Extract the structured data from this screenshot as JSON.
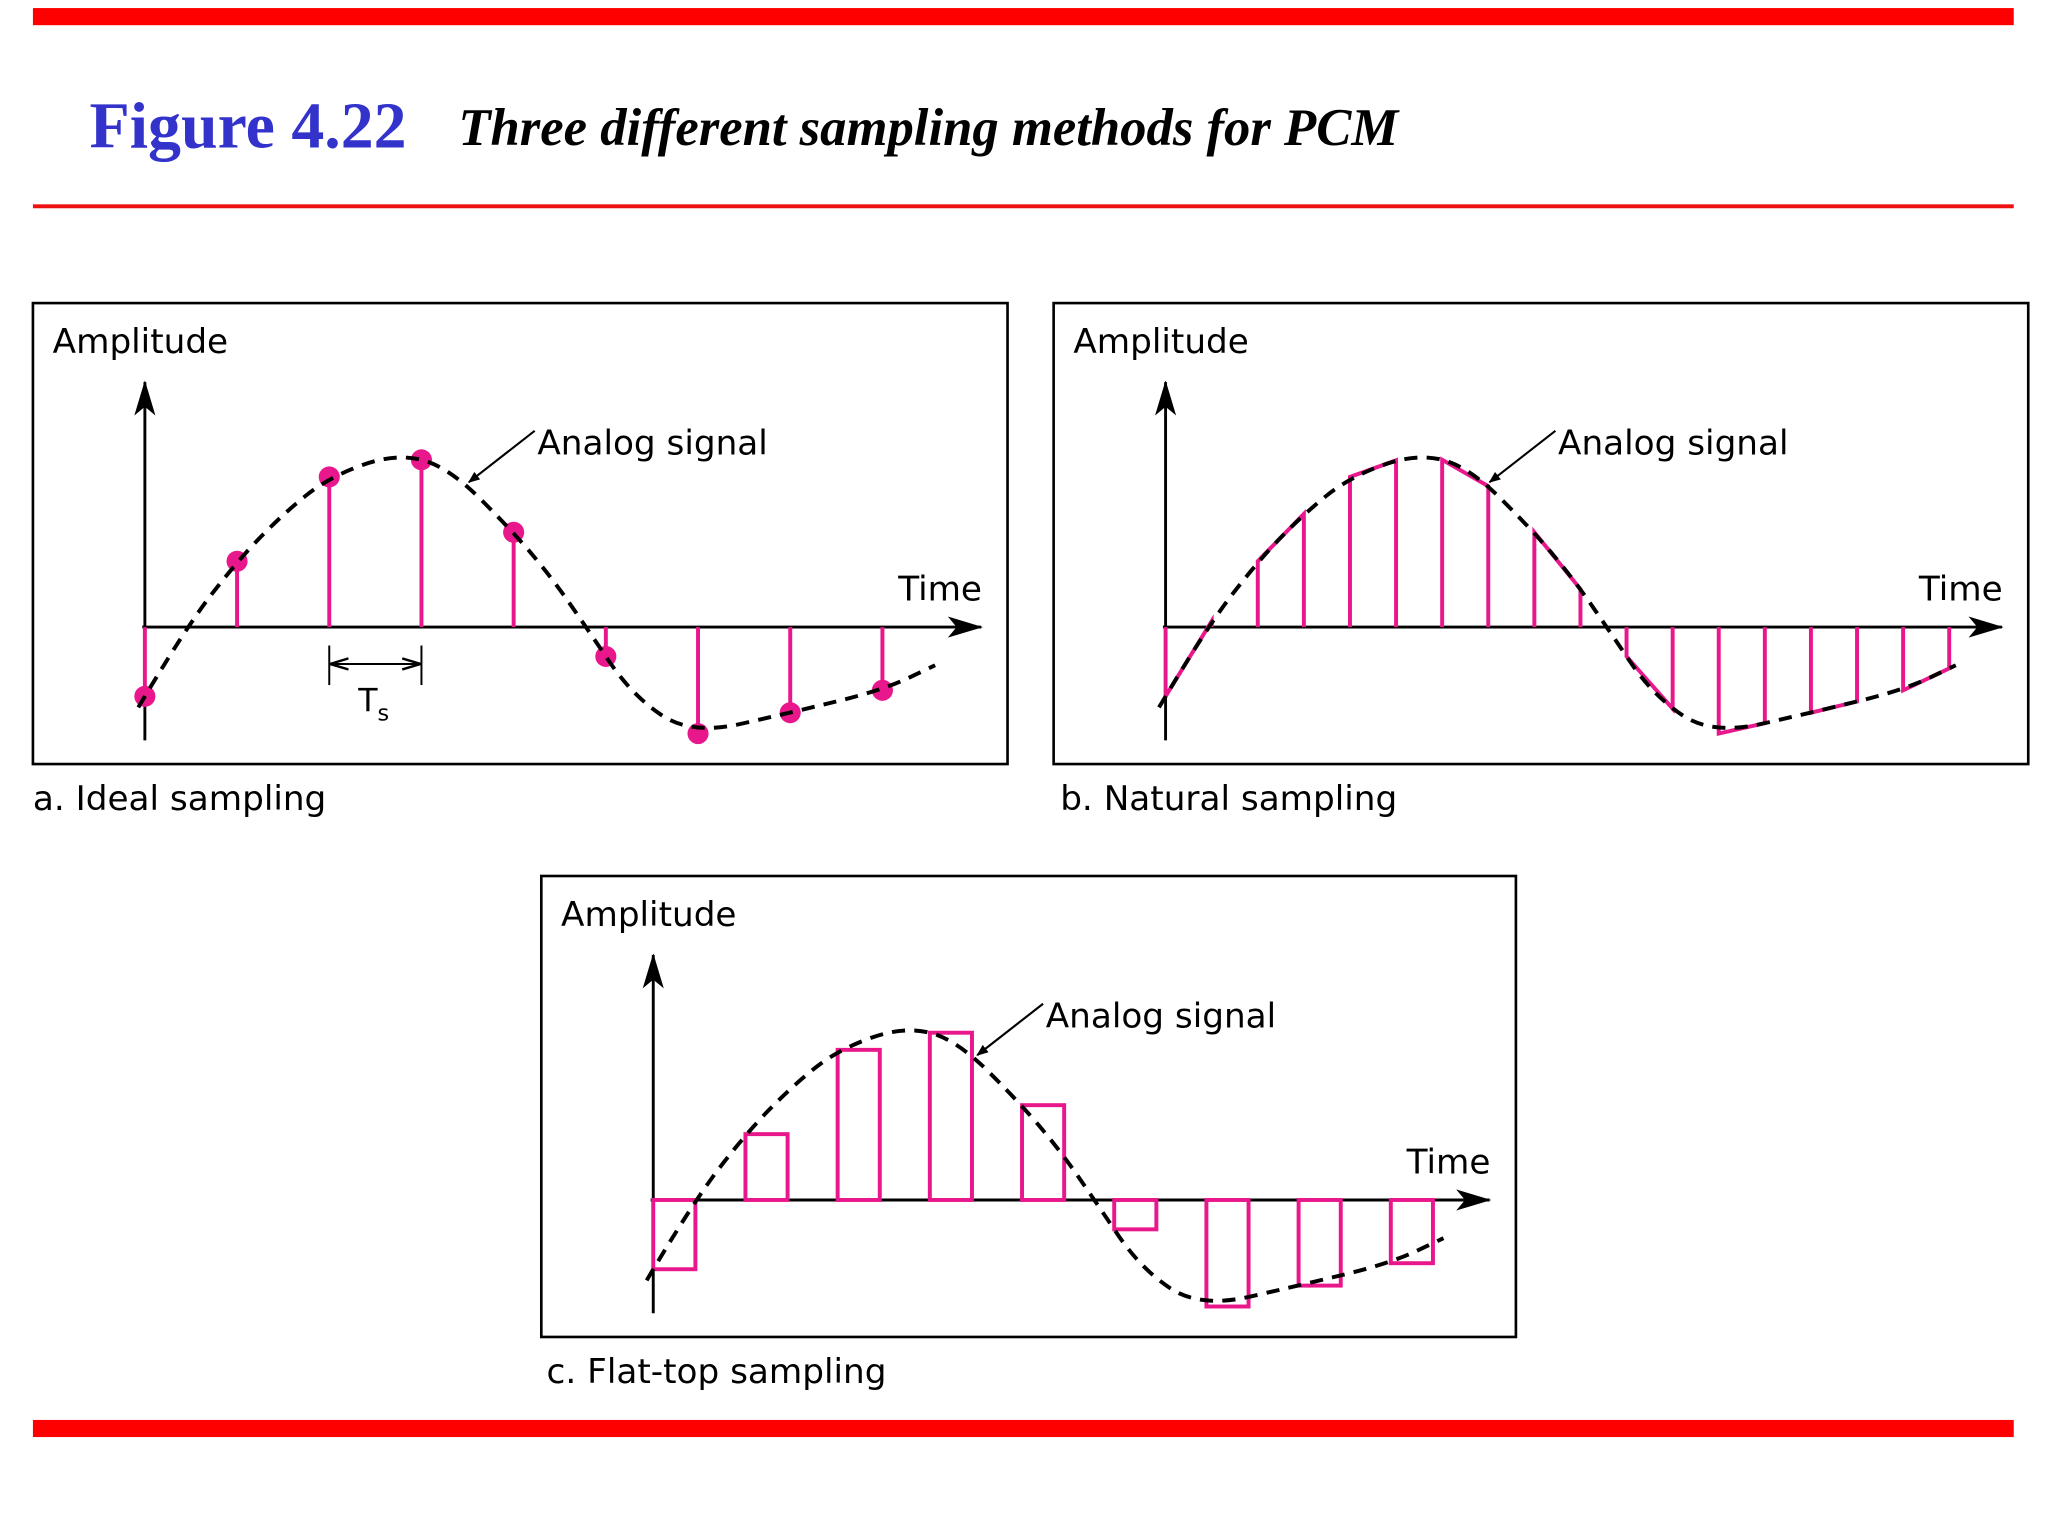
{
  "header": {
    "figure_label": "Figure 4.22",
    "caption": "Three different sampling methods for PCM"
  },
  "panels": [
    {
      "y_axis": "Amplitude",
      "x_axis": "Time",
      "annotation": "Analog signal",
      "caption": "a. Ideal sampling",
      "period": {
        "symbol": "T",
        "subscript": "s"
      }
    },
    {
      "y_axis": "Amplitude",
      "x_axis": "Time",
      "annotation": "Analog signal",
      "caption": "b. Natural sampling"
    },
    {
      "y_axis": "Amplitude",
      "x_axis": "Time",
      "annotation": "Analog signal",
      "caption": "c. Flat-top sampling"
    }
  ]
}
